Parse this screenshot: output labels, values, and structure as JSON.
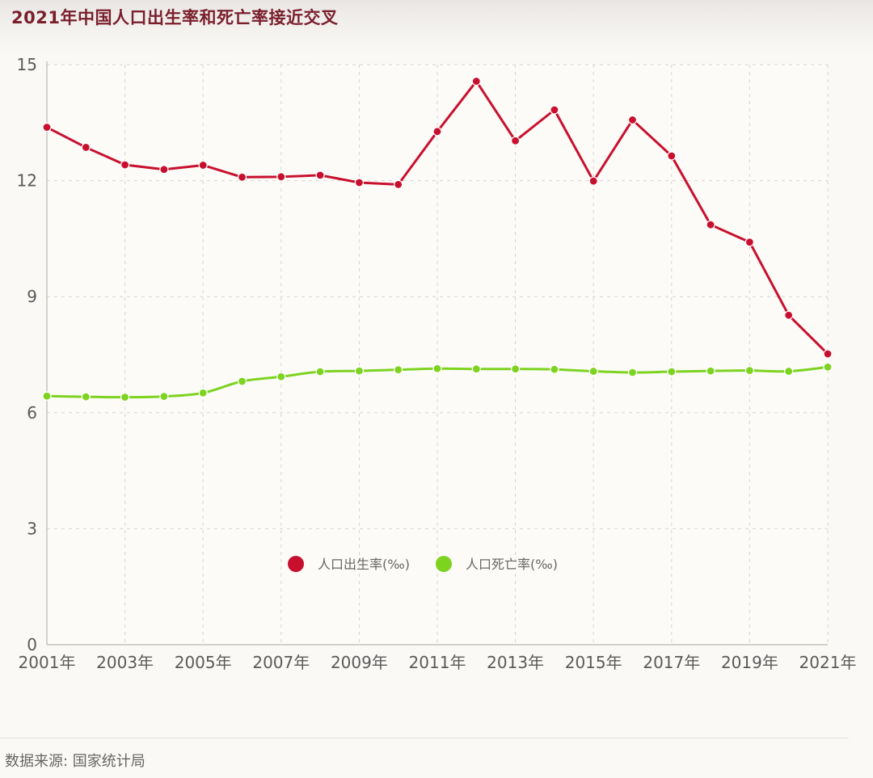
{
  "chart_data": {
    "type": "line",
    "title": "2021年中国人口出生率和死亡率接近交叉",
    "x": [
      "2001",
      "2002",
      "2003",
      "2004",
      "2005",
      "2006",
      "2007",
      "2008",
      "2009",
      "2010",
      "2011",
      "2012",
      "2013",
      "2014",
      "2015",
      "2016",
      "2017",
      "2018",
      "2019",
      "2020",
      "2021"
    ],
    "x_tick_labels": [
      "2001年",
      "2003年",
      "2005年",
      "2007年",
      "2009年",
      "2011年",
      "2013年",
      "2015年",
      "2017年",
      "2019年",
      "2021年"
    ],
    "y_ticks": [
      0,
      3,
      6,
      9,
      12,
      15
    ],
    "ylim": [
      0,
      15
    ],
    "grid": true,
    "legend_position": "center",
    "series": [
      {
        "name": "人口出生率(‰)",
        "color": "#c8102e",
        "values": [
          13.38,
          12.86,
          12.41,
          12.29,
          12.4,
          12.09,
          12.1,
          12.14,
          11.95,
          11.9,
          13.27,
          14.57,
          13.03,
          13.83,
          11.99,
          13.57,
          12.64,
          10.86,
          10.41,
          8.52,
          7.52
        ]
      },
      {
        "name": "人口死亡率(‰)",
        "color": "#7ed321",
        "values": [
          6.43,
          6.41,
          6.4,
          6.42,
          6.51,
          6.81,
          6.93,
          7.06,
          7.08,
          7.11,
          7.14,
          7.13,
          7.13,
          7.12,
          7.07,
          7.04,
          7.06,
          7.08,
          7.09,
          7.07,
          7.18
        ]
      }
    ]
  },
  "source": "数据来源: 国家统计局"
}
